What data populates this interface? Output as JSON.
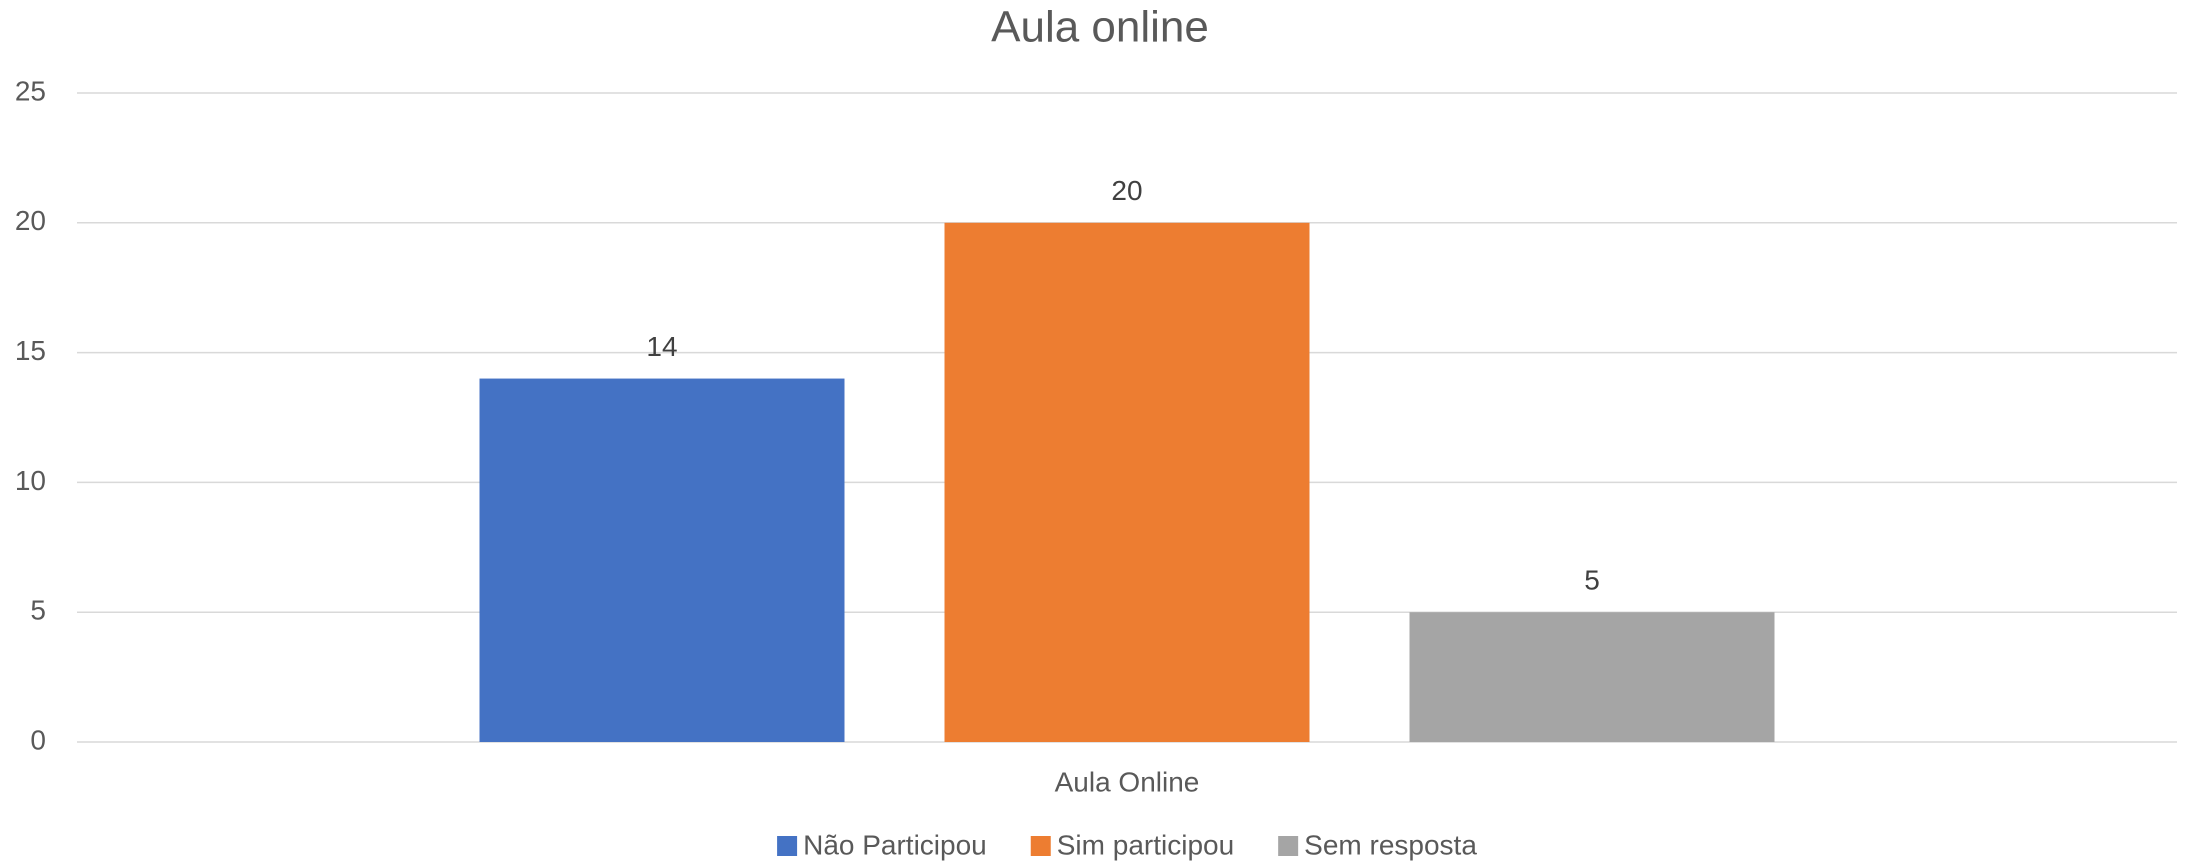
{
  "chart_data": {
    "type": "bar",
    "title": "Aula online",
    "categories": [
      "Aula Online"
    ],
    "series": [
      {
        "name": "Não Participou",
        "color": "#4472c4",
        "values": [
          14
        ]
      },
      {
        "name": "Sim participou",
        "color": "#ed7d31",
        "values": [
          20
        ]
      },
      {
        "name": "Sem resposta",
        "color": "#a5a5a5",
        "values": [
          5
        ]
      }
    ],
    "ylim": [
      0,
      25
    ],
    "yticks": [
      0,
      5,
      10,
      15,
      20,
      25
    ],
    "grid": true,
    "legend": "bottom"
  }
}
